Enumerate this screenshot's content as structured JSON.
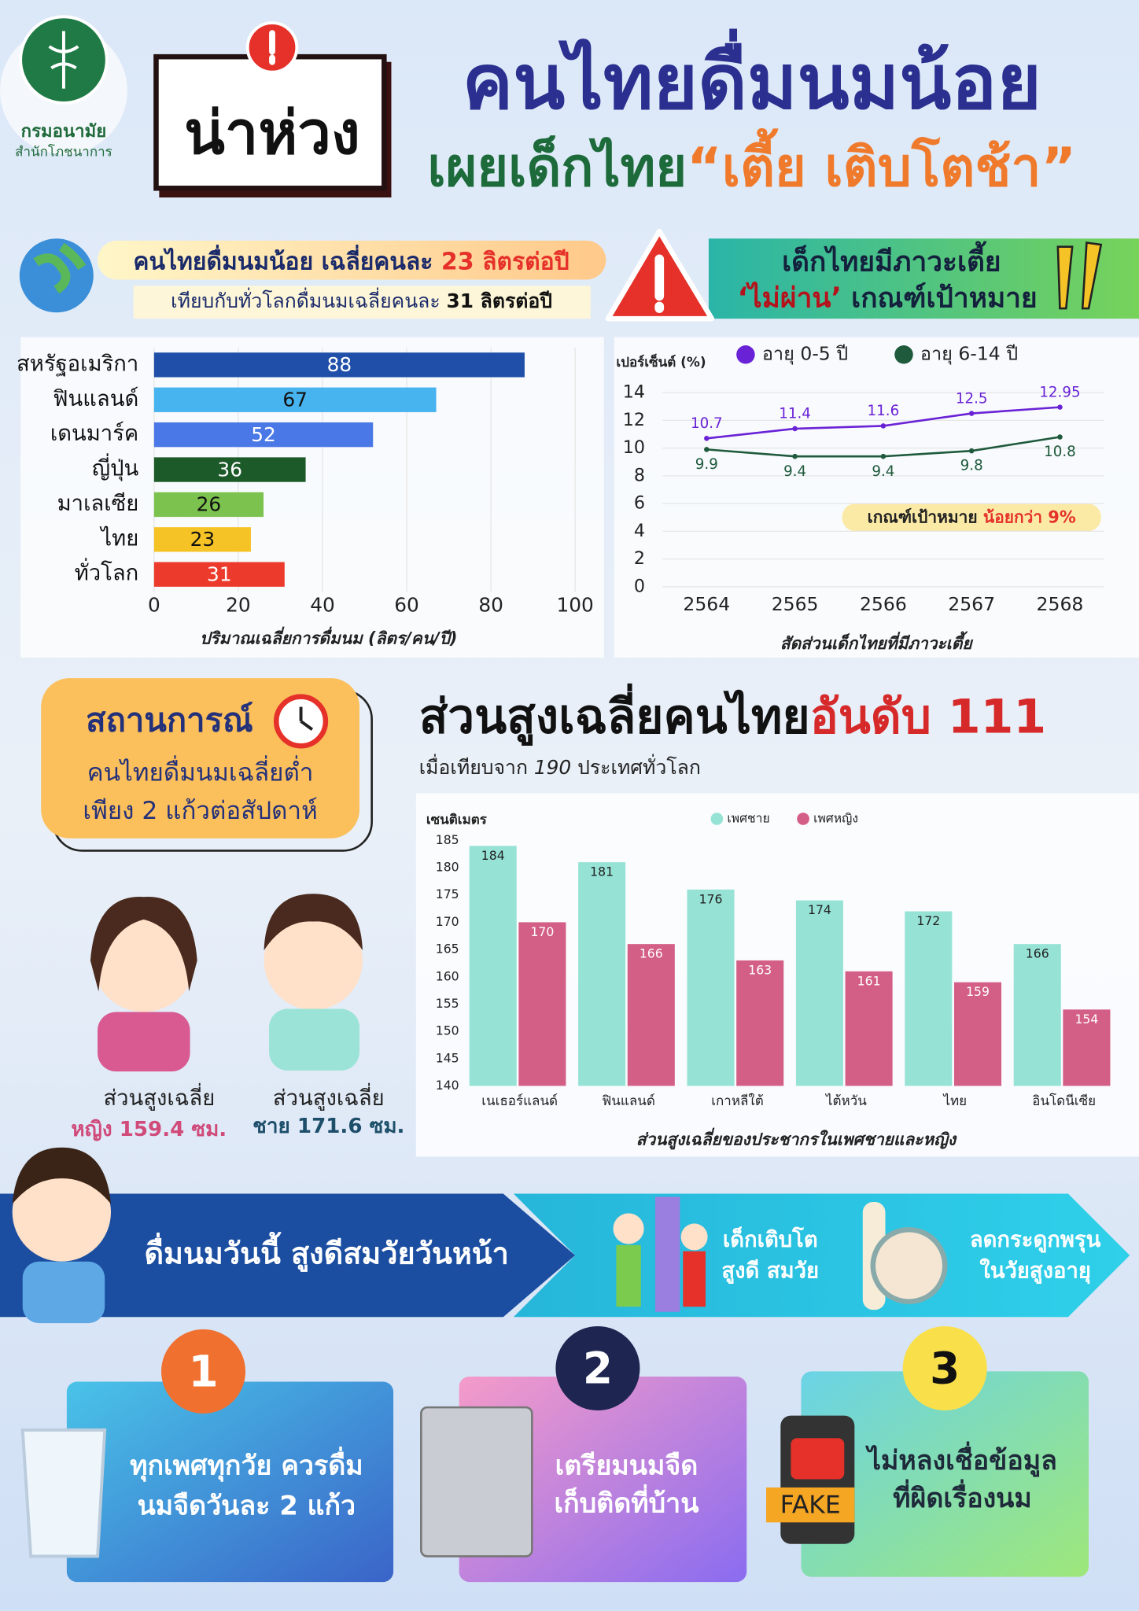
{
  "header": {
    "org_name": "กรมอนามัย",
    "org_unit": "สำนักโภชนาการ",
    "badge": "น่าห่วง",
    "title": "คนไทยดื่มนมน้อย",
    "subtitle_prefix": "เผยเด็กไทย",
    "subtitle_highlight": "“เตี้ย เติบโตช้า”"
  },
  "milk_banner": {
    "line1_prefix": "คนไทยดื่มนมน้อย เฉลี่ยคนละ",
    "line1_highlight": "23 ลิตรต่อปี",
    "line2_prefix": "เทียบกับทั่วโลกดื่มนมเฉลี่ยคนละ",
    "line2_highlight": "31 ลิตรต่อปี"
  },
  "stunting_banner": {
    "line1": "เด็กไทยมีภาวะเตี้ย",
    "line2_highlight": "‘ไม่ผ่าน’",
    "line2_rest": "เกณฑ์เป้าหมาย"
  },
  "situation": {
    "title": "สถานการณ์",
    "line1": "คนไทยดื่มนมเฉลี่ยต่ำ",
    "line2": "เพียง 2 แก้วต่อสัปดาห์"
  },
  "height_heading": {
    "title": "ส่วนสูงเฉลี่ยคนไทย",
    "highlight": "อันดับ 111",
    "subtitle_prefix": "เมื่อเทียบจาก",
    "subtitle_number": "190",
    "subtitle_suffix": "ประเทศทั่วโลก"
  },
  "kids": {
    "girl_label": "ส่วนสูงเฉลี่ย",
    "girl_value": "หญิง 159.4 ซม.",
    "boy_label": "ส่วนสูงเฉลี่ย",
    "boy_value": "ชาย 171.6 ซม."
  },
  "campaign": {
    "slogan": "ดื่มนมวันนี้ สูงดีสมวัยวันหน้า",
    "benefit1_line1": "เด็กเติบโต",
    "benefit1_line2": "สูงดี สมวัย",
    "benefit2_line1": "ลดกระดูกพรุน",
    "benefit2_line2": "ในวัยสูงอายุ"
  },
  "tips": [
    {
      "number": "1",
      "line1": "ทุกเพศทุกวัย ควรดื่ม",
      "line2": "นมจืดวันละ 2 แก้ว"
    },
    {
      "number": "2",
      "line1": "เตรียมนมจืด",
      "line2": "เก็บติดที่บ้าน"
    },
    {
      "number": "3",
      "line1": "ไม่หลงเชื่อข้อมูล",
      "line2": "ที่ผิดเรื่องนม",
      "icon_text": "FAKE"
    }
  ],
  "chart_data": [
    {
      "type": "bar",
      "horizontal": true,
      "x_label": "ปริมาณเฉลี่ยการดื่มนม (ลิตร/คน/ปี)",
      "categories": [
        "สหรัฐอเมริกา",
        "ฟินแลนด์",
        "เดนมาร์ค",
        "ญี่ปุ่น",
        "มาเลเซีย",
        "ไทย",
        "ทั่วโลก"
      ],
      "values": [
        88,
        67,
        52,
        36,
        26,
        23,
        31
      ],
      "colors": [
        "#1f4fa8",
        "#47b3ef",
        "#4a78e6",
        "#1d5a2a",
        "#7cc24e",
        "#f5c326",
        "#ec3b2c"
      ],
      "xlim": [
        0,
        100
      ],
      "xticks": [
        0,
        20,
        40,
        60,
        80,
        100
      ],
      "grid": true
    },
    {
      "type": "line",
      "y_label": "เปอร์เซ็นต์ (%)",
      "x_label": "สัดส่วนเด็กไทยที่มีภาวะเตี้ย",
      "categories": [
        "2564",
        "2565",
        "2566",
        "2567",
        "2568"
      ],
      "series": [
        {
          "name": "อายุ 0-5 ปี",
          "color": "#6a22d6",
          "values": [
            10.7,
            11.4,
            11.6,
            12.5,
            12.95
          ]
        },
        {
          "name": "อายุ 6-14 ปี",
          "color": "#1f5a3c",
          "values": [
            9.9,
            9.4,
            9.4,
            9.8,
            10.8
          ]
        }
      ],
      "ylim": [
        0,
        14
      ],
      "yticks": [
        0,
        2,
        4,
        6,
        8,
        10,
        12,
        14
      ],
      "grid": true,
      "annotation": {
        "text": "เกณฑ์เป้าหมาย",
        "highlight": "น้อยกว่า 9%"
      }
    },
    {
      "type": "bar",
      "horizontal": false,
      "y_label": "เซนติเมตร",
      "x_label": "ส่วนสูงเฉลี่ยของประชากรในเพศชายและหญิง",
      "categories": [
        "เนเธอร์แลนด์",
        "ฟินแลนด์",
        "เกาหลีใต้",
        "ไต้หวัน",
        "ไทย",
        "อินโดนีเซีย"
      ],
      "series": [
        {
          "name": "เพศชาย",
          "color": "#96e3d6",
          "values": [
            184,
            181,
            176,
            174,
            172,
            166
          ]
        },
        {
          "name": "เพศหญิง",
          "color": "#d45f86",
          "values": [
            170,
            166,
            163,
            161,
            159,
            154
          ]
        }
      ],
      "ylim": [
        140,
        185
      ],
      "yticks": [
        140,
        145,
        150,
        155,
        160,
        165,
        170,
        175,
        180,
        185
      ],
      "grid": false
    }
  ]
}
